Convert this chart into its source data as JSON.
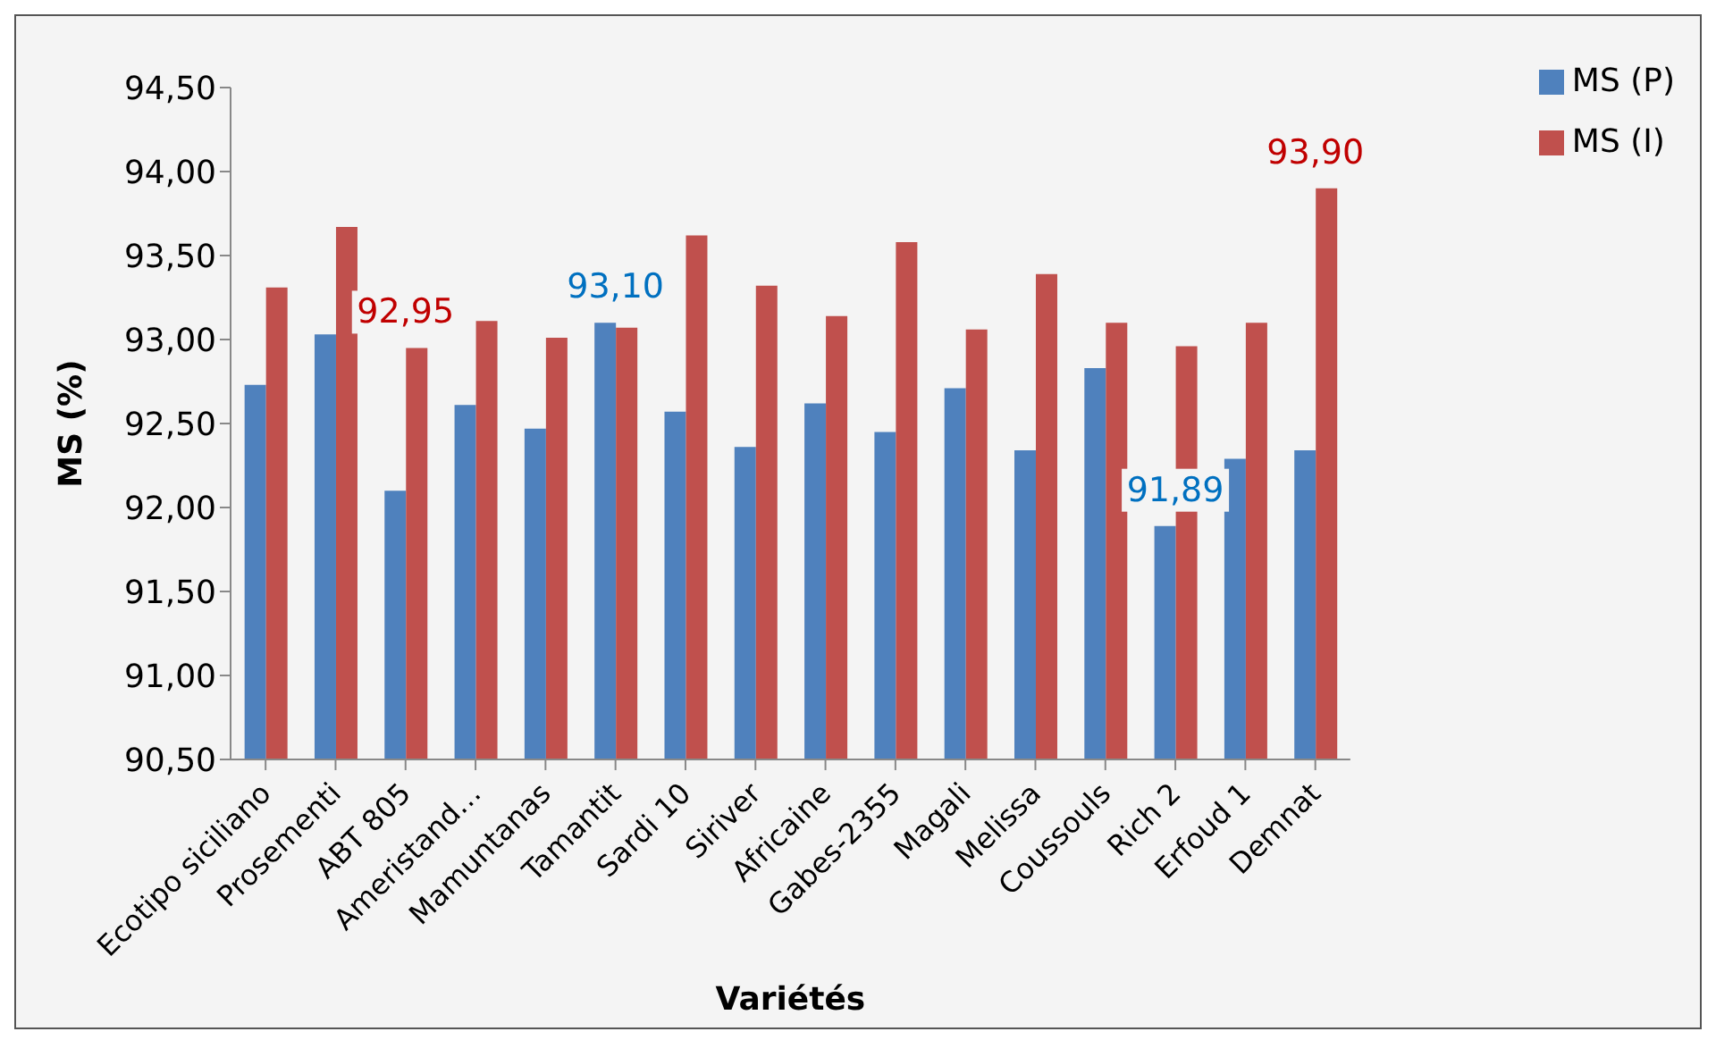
{
  "chart_data": {
    "type": "bar",
    "ylabel": "MS (%)",
    "xlabel": "Variétés",
    "categories": [
      "Ecotipo siciliano",
      "Prosementi",
      "ABT 805",
      "Ameristand…",
      "Mamuntanas",
      "Tamantit",
      "Sardi 10",
      "Siriver",
      "Africaine",
      "Gabes-2355",
      "Magali",
      "Melissa",
      "Coussouls",
      "Rich 2",
      "Erfoud 1",
      "Demnat"
    ],
    "series": [
      {
        "name": "MS (P)",
        "color": "#4f81bd",
        "values": [
          92.73,
          93.03,
          92.1,
          92.61,
          92.47,
          93.1,
          92.57,
          92.36,
          92.62,
          92.45,
          92.71,
          92.34,
          92.83,
          91.89,
          92.29,
          92.34
        ]
      },
      {
        "name": "MS (I)",
        "color": "#c0504d",
        "values": [
          93.31,
          93.67,
          92.95,
          93.11,
          93.01,
          93.07,
          93.62,
          93.32,
          93.14,
          93.58,
          93.06,
          93.39,
          93.1,
          92.96,
          93.1,
          93.9
        ]
      }
    ],
    "ylim": [
      90.5,
      94.5
    ],
    "yticks": [
      {
        "value": 90.5,
        "label": "90,50"
      },
      {
        "value": 91,
        "label": "91,00"
      },
      {
        "value": 91.5,
        "label": "91,50"
      },
      {
        "value": 92,
        "label": "92,00"
      },
      {
        "value": 92.5,
        "label": "92,50"
      },
      {
        "value": 93,
        "label": "93,00"
      },
      {
        "value": 93.5,
        "label": "93,50"
      },
      {
        "value": 94,
        "label": "94,00"
      },
      {
        "value": 94.5,
        "label": "94,50"
      }
    ],
    "annotations": [
      {
        "text": "92,95",
        "x": "ABT 805",
        "y": 92.95
      },
      {
        "text": "93,10",
        "x": "Tamantit",
        "y": 93.1
      },
      {
        "text": "91,89",
        "x": "Rich 2",
        "y": 91.89
      },
      {
        "text": "93,90",
        "x": "Demnat",
        "y": 93.9
      }
    ],
    "legend": "top right"
  }
}
